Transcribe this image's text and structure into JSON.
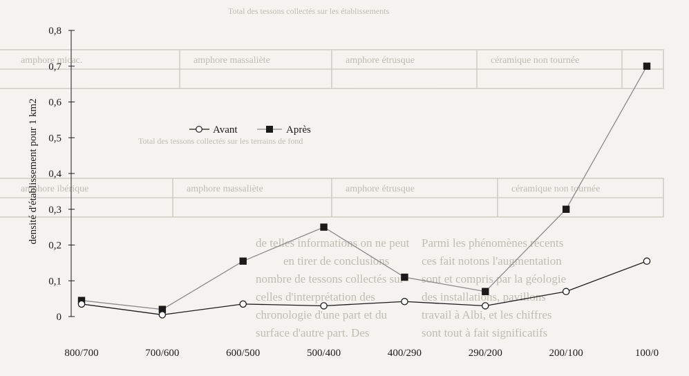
{
  "chart_data": {
    "type": "line",
    "categories": [
      "800/700",
      "700/600",
      "600/500",
      "500/400",
      "400/290",
      "290/200",
      "200/100",
      "100/0"
    ],
    "series": [
      {
        "name": "Avant",
        "marker": "circle",
        "values": [
          0.035,
          0.005,
          0.035,
          0.03,
          0.042,
          0.03,
          0.07,
          0.155
        ]
      },
      {
        "name": "Après",
        "marker": "square",
        "values": [
          0.045,
          0.02,
          0.155,
          0.25,
          0.11,
          0.07,
          0.3,
          0.7
        ]
      }
    ],
    "ylabel": "densité d'établissement pour 1 km2",
    "xlabel": "",
    "ylim": [
      0,
      0.8
    ],
    "yticks": [
      "0",
      "0,1",
      "0,2",
      "0,3",
      "0,4",
      "0,5",
      "0,6",
      "0,7",
      "0,8"
    ],
    "grid": false,
    "legend_position": "upper-left-center",
    "colors": {
      "avant": "#1a1a1a",
      "apres": "#8a8a8a",
      "marker": "#1a1a1a"
    }
  }
}
